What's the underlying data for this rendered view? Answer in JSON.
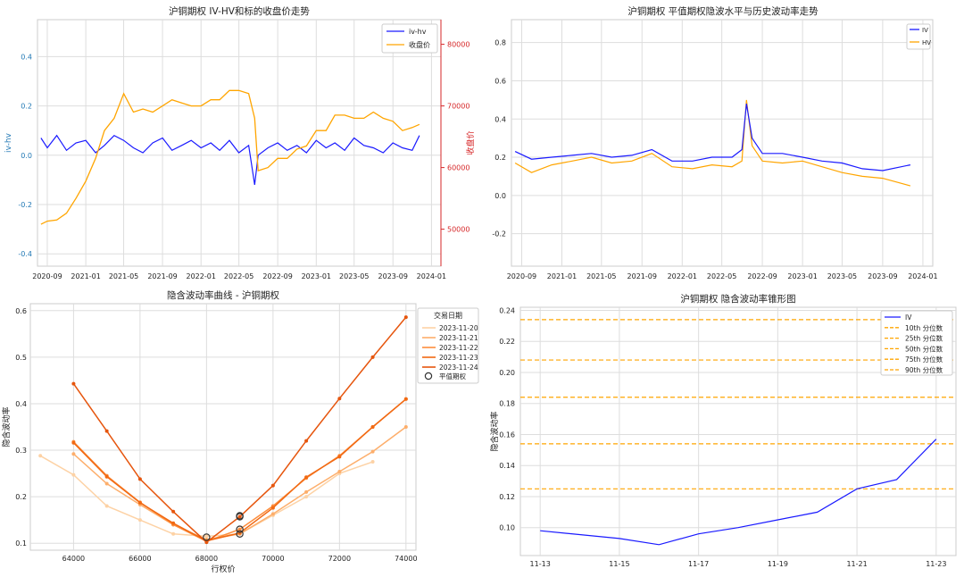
{
  "charts": {
    "c1": {
      "title": "沪铜期权 IV-HV和标的收盘价走势",
      "ylabel": "iv-hv",
      "y2label": "收盘价",
      "xticks": [
        "2020-09",
        "2021-01",
        "2021-05",
        "2021-09",
        "2022-01",
        "2022-05",
        "2022-09",
        "2023-01",
        "2023-05",
        "2023-09",
        "2024-01"
      ],
      "yticks": [
        "0.4",
        "0.2",
        "0.0",
        "-0.2",
        "-0.4"
      ],
      "y2ticks": [
        "80000",
        "70000",
        "60000",
        "50000"
      ],
      "legend": [
        "iv-hv",
        "收盘价"
      ]
    },
    "c2": {
      "title": "沪铜期权 平值期权隐波水平与历史波动率走势",
      "xticks": [
        "2020-09",
        "2021-01",
        "2021-05",
        "2021-09",
        "2022-01",
        "2022-05",
        "2022-09",
        "2023-01",
        "2023-05",
        "2023-09",
        "2024-01"
      ],
      "yticks": [
        "0.8",
        "0.6",
        "0.4",
        "0.2",
        "0.0",
        "-0.2"
      ],
      "legend": [
        "IV",
        "HV"
      ]
    },
    "c3": {
      "title": "隐含波动率曲线 - 沪铜期权",
      "xlabel": "行权价",
      "ylabel": "隐含波动率",
      "xticks": [
        "64000",
        "66000",
        "68000",
        "70000",
        "72000",
        "74000"
      ],
      "yticks": [
        "0.6",
        "0.5",
        "0.4",
        "0.3",
        "0.2",
        "0.1"
      ],
      "legend_title": "交易日期",
      "legend": [
        "2023-11-20",
        "2023-11-21",
        "2023-11-22",
        "2023-11-23",
        "2023-11-24"
      ],
      "atm_label": "平值期权"
    },
    "c4": {
      "title": "沪铜期权 隐含波动率锥形图",
      "ylabel": "隐含波动率",
      "xticks": [
        "11-13",
        "11-15",
        "11-17",
        "11-19",
        "11-21",
        "11-23"
      ],
      "yticks": [
        "0.24",
        "0.22",
        "0.20",
        "0.18",
        "0.16",
        "0.14",
        "0.12",
        "0.10"
      ],
      "legend": [
        "IV",
        "10th 分位数",
        "25th 分位数",
        "50th 分位数",
        "75th 分位数",
        "90th 分位数"
      ]
    }
  },
  "chart_data": [
    {
      "type": "line",
      "title": "沪铜期权 IV-HV和标的收盘价走势",
      "x_range": [
        "2020-08-01",
        "2024-01-31"
      ],
      "ylim": [
        -0.45,
        0.55
      ],
      "y2lim": [
        44000,
        84000
      ],
      "colors": {
        "iv-hv": "#1a1aff",
        "收盘价": "#ffa500"
      },
      "series": [
        {
          "name": "iv-hv",
          "axis": "left",
          "dates": [
            "2020-08-12",
            "2020-09-01",
            "2020-10-01",
            "2020-11-01",
            "2020-12-01",
            "2021-01-01",
            "2021-02-01",
            "2021-03-01",
            "2021-04-01",
            "2021-05-01",
            "2021-06-01",
            "2021-07-01",
            "2021-08-01",
            "2021-09-01",
            "2021-10-01",
            "2021-11-01",
            "2021-12-01",
            "2022-01-01",
            "2022-02-01",
            "2022-03-01",
            "2022-04-01",
            "2022-05-01",
            "2022-06-01",
            "2022-06-20",
            "2022-07-01",
            "2022-08-01",
            "2022-09-01",
            "2022-10-01",
            "2022-11-01",
            "2022-12-01",
            "2023-01-01",
            "2023-02-01",
            "2023-03-01",
            "2023-04-01",
            "2023-05-01",
            "2023-06-01",
            "2023-07-01",
            "2023-08-01",
            "2023-09-01",
            "2023-10-01",
            "2023-11-01",
            "2023-11-24"
          ],
          "values": [
            0.07,
            0.03,
            0.08,
            0.02,
            0.05,
            0.06,
            0.01,
            0.04,
            0.08,
            0.06,
            0.03,
            0.01,
            0.05,
            0.07,
            0.02,
            0.04,
            0.06,
            0.03,
            0.05,
            0.02,
            0.06,
            0.01,
            0.04,
            -0.12,
            0.0,
            0.03,
            0.05,
            0.02,
            0.04,
            0.01,
            0.06,
            0.03,
            0.05,
            0.02,
            0.07,
            0.04,
            0.03,
            0.01,
            0.05,
            0.03,
            0.02,
            0.08
          ]
        },
        {
          "name": "收盘价",
          "axis": "right",
          "dates": [
            "2020-08-12",
            "2020-09-01",
            "2020-10-01",
            "2020-11-01",
            "2020-12-01",
            "2021-01-01",
            "2021-02-01",
            "2021-03-01",
            "2021-04-01",
            "2021-05-01",
            "2021-06-01",
            "2021-07-01",
            "2021-08-01",
            "2021-09-01",
            "2021-10-01",
            "2021-11-01",
            "2021-12-01",
            "2022-01-01",
            "2022-02-01",
            "2022-03-01",
            "2022-04-01",
            "2022-05-01",
            "2022-06-01",
            "2022-06-20",
            "2022-07-01",
            "2022-08-01",
            "2022-09-01",
            "2022-10-01",
            "2022-11-01",
            "2022-12-01",
            "2023-01-01",
            "2023-02-01",
            "2023-03-01",
            "2023-04-01",
            "2023-05-01",
            "2023-06-01",
            "2023-07-01",
            "2023-08-01",
            "2023-09-01",
            "2023-10-01",
            "2023-11-01",
            "2023-11-24"
          ],
          "values": [
            50800,
            51300,
            51500,
            52600,
            55000,
            57800,
            61500,
            66000,
            68000,
            72000,
            69000,
            69500,
            69000,
            70000,
            71000,
            70500,
            70000,
            70000,
            71000,
            71000,
            72500,
            72500,
            72000,
            68000,
            59500,
            60000,
            61500,
            61500,
            63000,
            63500,
            66000,
            66000,
            68500,
            68500,
            68000,
            68000,
            69000,
            68000,
            67500,
            66000,
            66500,
            67000
          ]
        }
      ]
    },
    {
      "type": "line",
      "title": "沪铜期权 平值期权隐波水平与历史波动率走势",
      "x_range": [
        "2020-08-01",
        "2024-01-31"
      ],
      "ylim": [
        -0.37,
        0.92
      ],
      "colors": {
        "IV": "#1a1aff",
        "HV": "#ffa500"
      },
      "series": [
        {
          "name": "IV",
          "dates": [
            "2020-08-12",
            "2020-10-01",
            "2020-12-01",
            "2021-02-01",
            "2021-04-01",
            "2021-06-01",
            "2021-08-01",
            "2021-10-01",
            "2021-12-01",
            "2022-02-01",
            "2022-04-01",
            "2022-06-01",
            "2022-07-01",
            "2022-07-15",
            "2022-08-01",
            "2022-09-01",
            "2022-11-01",
            "2023-01-01",
            "2023-03-01",
            "2023-05-01",
            "2023-07-01",
            "2023-09-01",
            "2023-11-24"
          ],
          "values": [
            0.23,
            0.19,
            0.2,
            0.21,
            0.22,
            0.2,
            0.21,
            0.24,
            0.18,
            0.18,
            0.2,
            0.2,
            0.24,
            0.48,
            0.3,
            0.22,
            0.22,
            0.2,
            0.18,
            0.17,
            0.14,
            0.13,
            0.16
          ]
        },
        {
          "name": "HV",
          "dates": [
            "2020-08-12",
            "2020-10-01",
            "2020-12-01",
            "2021-02-01",
            "2021-04-01",
            "2021-06-01",
            "2021-08-01",
            "2021-10-01",
            "2021-12-01",
            "2022-02-01",
            "2022-04-01",
            "2022-06-01",
            "2022-07-01",
            "2022-07-15",
            "2022-08-01",
            "2022-09-01",
            "2022-11-01",
            "2023-01-01",
            "2023-03-01",
            "2023-05-01",
            "2023-07-01",
            "2023-09-01",
            "2023-11-24"
          ],
          "values": [
            0.17,
            0.12,
            0.16,
            0.18,
            0.2,
            0.17,
            0.18,
            0.22,
            0.15,
            0.14,
            0.16,
            0.15,
            0.18,
            0.5,
            0.26,
            0.18,
            0.17,
            0.18,
            0.15,
            0.12,
            0.1,
            0.09,
            0.05
          ]
        }
      ]
    },
    {
      "type": "line",
      "title": "隐含波动率曲线 - 沪铜期权",
      "xlabel": "行权价",
      "ylabel": "隐含波动率",
      "xlim": [
        62700,
        74300
      ],
      "ylim": [
        0.085,
        0.615
      ],
      "series": [
        {
          "name": "2023-11-20",
          "color": "#fdd2a5",
          "x": [
            63000,
            64000,
            65000,
            66000,
            67000,
            68000,
            69000,
            70000,
            71000,
            72000,
            73000
          ],
          "values": [
            0.288,
            0.247,
            0.18,
            0.15,
            0.12,
            0.115,
            0.12,
            0.16,
            0.2,
            0.25,
            0.275
          ]
        },
        {
          "name": "2023-11-21",
          "color": "#fdae6b",
          "x": [
            64000,
            65000,
            66000,
            67000,
            68000,
            69000,
            70000,
            71000,
            72000,
            73000,
            74000
          ],
          "values": [
            0.292,
            0.228,
            0.183,
            0.14,
            0.108,
            0.12,
            0.163,
            0.21,
            0.254,
            0.297,
            0.35
          ]
        },
        {
          "name": "2023-11-22",
          "color": "#fd8d3c",
          "x": [
            64000,
            65000,
            66000,
            67000,
            68000,
            69000,
            70000,
            71000,
            72000,
            73000,
            74000
          ],
          "values": [
            0.318,
            0.245,
            0.188,
            0.14,
            0.104,
            0.13,
            0.18,
            0.24,
            0.288,
            0.35,
            0.41
          ]
        },
        {
          "name": "2023-11-23",
          "color": "#f16913",
          "x": [
            64000,
            65000,
            66000,
            67000,
            68000,
            69000,
            70000,
            71000,
            72000,
            73000,
            74000
          ],
          "values": [
            0.316,
            0.243,
            0.187,
            0.143,
            0.105,
            0.122,
            0.176,
            0.242,
            0.286,
            0.35,
            0.41
          ]
        },
        {
          "name": "2023-11-24",
          "color": "#e6550d",
          "x": [
            64000,
            65000,
            66000,
            67000,
            68000,
            69000,
            70000,
            71000,
            72000,
            73000,
            74000
          ],
          "values": [
            0.443,
            0.341,
            0.238,
            0.168,
            0.102,
            0.157,
            0.224,
            0.32,
            0.411,
            0.5,
            0.586
          ]
        }
      ],
      "atm_points": [
        {
          "x": 68000,
          "y": 0.113
        },
        {
          "x": 69000,
          "y": 0.12
        },
        {
          "x": 69000,
          "y": 0.13
        },
        {
          "x": 69000,
          "y": 0.157
        },
        {
          "x": 69000,
          "y": 0.159
        }
      ]
    },
    {
      "type": "line",
      "title": "沪铜期权 隐含波动率锥形图",
      "ylabel": "隐含波动率",
      "xlim": [
        12.5,
        23.5
      ],
      "ylim": [
        0.082,
        0.242
      ],
      "series": [
        {
          "name": "IV",
          "color": "#1a1aff",
          "x": [
            "11-13",
            "11-15",
            "11-16",
            "11-17",
            "11-18",
            "11-19",
            "11-20",
            "11-21",
            "11-22",
            "11-23"
          ],
          "values": [
            0.098,
            0.093,
            0.089,
            0.096,
            0.1,
            0.105,
            0.11,
            0.125,
            0.131,
            0.157
          ]
        }
      ],
      "hlines": [
        {
          "name": "10th 分位数",
          "value": 0.125
        },
        {
          "name": "25th 分位数",
          "value": 0.154
        },
        {
          "name": "50th 分位数",
          "value": 0.184
        },
        {
          "name": "75th 分位数",
          "value": 0.208
        },
        {
          "name": "90th 分位数",
          "value": 0.234
        }
      ],
      "hline_color": "#ffa500"
    }
  ]
}
